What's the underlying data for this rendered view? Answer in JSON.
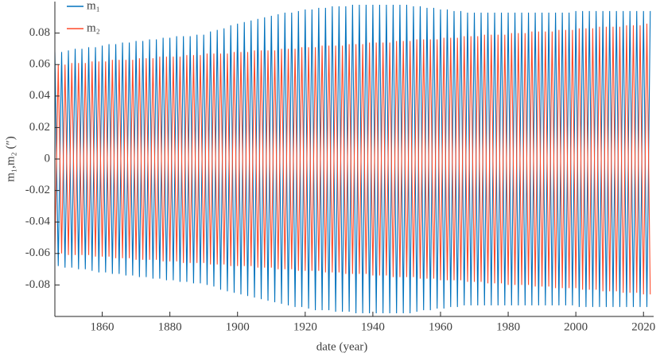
{
  "chart_data": {
    "type": "line",
    "x_label": "date (year)",
    "y_label": "m₁,m₂ (″)",
    "xlim": [
      1846,
      2023
    ],
    "xticks": [
      1860,
      1880,
      1900,
      1920,
      1940,
      1960,
      1980,
      2000,
      2020
    ],
    "ylim": [
      -0.1,
      0.1
    ],
    "yticks": [
      -0.08,
      -0.06,
      -0.04,
      -0.02,
      0,
      0.02,
      0.04,
      0.06,
      0.08
    ],
    "legend": "upper-left",
    "grid": false,
    "x": [
      1846,
      1847,
      1848,
      1849,
      1850,
      1851,
      1852,
      1853,
      1854,
      1855,
      1856,
      1857,
      1858,
      1859,
      1860,
      1861,
      1862,
      1863,
      1864,
      1865,
      1866,
      1867,
      1868,
      1869,
      1870,
      1871,
      1872,
      1873,
      1874,
      1875,
      1876,
      1877,
      1878,
      1879,
      1880,
      1881,
      1882,
      1883,
      1884,
      1885,
      1886,
      1887,
      1888,
      1889,
      1890,
      1891,
      1892,
      1893,
      1894,
      1895,
      1896,
      1897,
      1898,
      1899,
      1900,
      1901,
      1902,
      1903,
      1904,
      1905,
      1906,
      1907,
      1908,
      1909,
      1910,
      1911,
      1912,
      1913,
      1914,
      1915,
      1916,
      1917,
      1918,
      1919,
      1920,
      1921,
      1922,
      1923,
      1924,
      1925,
      1926,
      1927,
      1928,
      1929,
      1930,
      1931,
      1932,
      1933,
      1934,
      1935,
      1936,
      1937,
      1938,
      1939,
      1940,
      1941,
      1942,
      1943,
      1944,
      1945,
      1946,
      1947,
      1948,
      1949,
      1950,
      1951,
      1952,
      1953,
      1954,
      1955,
      1956,
      1957,
      1958,
      1959,
      1960,
      1961,
      1962,
      1963,
      1964,
      1965,
      1966,
      1967,
      1968,
      1969,
      1970,
      1971,
      1972,
      1973,
      1974,
      1975,
      1976,
      1977,
      1978,
      1979,
      1980,
      1981,
      1982,
      1983,
      1984,
      1985,
      1986,
      1987,
      1988,
      1989,
      1990,
      1991,
      1992,
      1993,
      1994,
      1995,
      1996,
      1997,
      1998,
      1999,
      2000,
      2001,
      2002,
      2003,
      2004,
      2005,
      2006,
      2007,
      2008,
      2009,
      2010,
      2011,
      2012,
      2013,
      2014,
      2015,
      2016,
      2017,
      2018,
      2019,
      2020,
      2021,
      2022
    ],
    "series": [
      {
        "name": "m₁",
        "color": "#0072bd",
        "values": [
          0.068,
          -0.068,
          0.068,
          -0.069,
          0.069,
          -0.069,
          0.07,
          -0.07,
          0.07,
          -0.07,
          0.071,
          -0.071,
          0.071,
          -0.072,
          0.072,
          -0.072,
          0.073,
          -0.073,
          0.073,
          -0.073,
          0.074,
          -0.074,
          0.074,
          -0.074,
          0.075,
          -0.075,
          0.075,
          -0.075,
          0.076,
          -0.076,
          0.076,
          -0.076,
          0.077,
          -0.077,
          0.077,
          -0.077,
          0.078,
          -0.078,
          0.078,
          -0.078,
          0.078,
          -0.079,
          0.079,
          -0.079,
          0.079,
          -0.08,
          0.081,
          -0.081,
          0.082,
          -0.083,
          0.083,
          -0.084,
          0.085,
          -0.085,
          0.086,
          -0.086,
          0.087,
          -0.087,
          0.088,
          -0.088,
          0.089,
          -0.089,
          0.09,
          -0.09,
          0.091,
          -0.091,
          0.092,
          -0.092,
          0.093,
          -0.093,
          0.093,
          -0.094,
          0.094,
          -0.094,
          0.095,
          -0.095,
          0.095,
          -0.096,
          0.096,
          -0.096,
          0.096,
          -0.096,
          0.097,
          -0.097,
          0.097,
          -0.097,
          0.097,
          -0.097,
          0.098,
          -0.098,
          0.098,
          -0.098,
          0.098,
          -0.098,
          0.098,
          -0.098,
          0.098,
          -0.098,
          0.098,
          -0.098,
          0.098,
          -0.098,
          0.098,
          -0.098,
          0.098,
          -0.098,
          0.097,
          -0.097,
          0.097,
          -0.096,
          0.096,
          -0.096,
          0.096,
          -0.095,
          0.095,
          -0.095,
          0.095,
          -0.094,
          0.094,
          -0.094,
          0.094,
          -0.093,
          0.093,
          -0.093,
          0.093,
          -0.093,
          0.093,
          -0.093,
          0.093,
          -0.093,
          0.093,
          -0.093,
          0.093,
          -0.093,
          0.093,
          -0.093,
          0.093,
          -0.093,
          0.093,
          -0.093,
          0.093,
          -0.093,
          0.093,
          -0.093,
          0.093,
          -0.093,
          0.093,
          -0.093,
          0.093,
          -0.093,
          0.093,
          -0.093,
          0.093,
          -0.093,
          0.094,
          -0.094,
          0.094,
          -0.094,
          0.094,
          -0.094,
          0.094,
          -0.094,
          0.094,
          -0.094,
          0.094,
          -0.094,
          0.094,
          -0.094,
          0.094,
          -0.094,
          0.094,
          -0.094,
          0.094,
          -0.094,
          0.094,
          -0.094,
          0.094
        ]
      },
      {
        "name": "m₂",
        "color": "#ff4a2a",
        "values": [
          -0.06,
          0.06,
          -0.06,
          0.06,
          -0.061,
          0.061,
          -0.061,
          0.061,
          -0.061,
          0.061,
          -0.061,
          0.062,
          -0.062,
          0.062,
          -0.062,
          0.062,
          -0.062,
          0.063,
          -0.063,
          0.063,
          -0.063,
          0.063,
          -0.063,
          0.063,
          -0.064,
          0.064,
          -0.064,
          0.064,
          -0.064,
          0.064,
          -0.064,
          0.065,
          -0.065,
          0.065,
          -0.065,
          0.065,
          -0.065,
          0.065,
          -0.066,
          0.066,
          -0.066,
          0.066,
          -0.066,
          0.066,
          -0.066,
          0.067,
          -0.067,
          0.067,
          -0.067,
          0.067,
          -0.067,
          0.067,
          -0.068,
          0.068,
          -0.068,
          0.068,
          -0.068,
          0.068,
          -0.068,
          0.069,
          -0.069,
          0.069,
          -0.069,
          0.069,
          -0.069,
          0.069,
          -0.07,
          0.07,
          -0.07,
          0.07,
          -0.07,
          0.07,
          -0.071,
          0.071,
          -0.071,
          0.071,
          -0.071,
          0.071,
          -0.071,
          0.072,
          -0.072,
          0.072,
          -0.072,
          0.072,
          -0.072,
          0.072,
          -0.073,
          0.073,
          -0.073,
          0.073,
          -0.073,
          0.073,
          -0.073,
          0.074,
          -0.074,
          0.074,
          -0.074,
          0.074,
          -0.074,
          0.074,
          -0.075,
          0.075,
          -0.075,
          0.075,
          -0.075,
          0.075,
          -0.075,
          0.076,
          -0.076,
          0.076,
          -0.076,
          0.076,
          -0.076,
          0.076,
          -0.077,
          0.077,
          -0.077,
          0.077,
          -0.077,
          0.077,
          -0.077,
          0.078,
          -0.078,
          0.078,
          -0.078,
          0.078,
          -0.078,
          0.079,
          -0.079,
          0.079,
          -0.079,
          0.079,
          -0.079,
          0.079,
          -0.08,
          0.08,
          -0.08,
          0.08,
          -0.08,
          0.08,
          -0.08,
          0.081,
          -0.081,
          0.081,
          -0.081,
          0.081,
          -0.081,
          0.081,
          -0.082,
          0.082,
          -0.082,
          0.082,
          -0.082,
          0.082,
          -0.082,
          0.083,
          -0.083,
          0.083,
          -0.083,
          0.083,
          -0.083,
          0.084,
          -0.084,
          0.084,
          -0.084,
          0.084,
          -0.084,
          0.084,
          -0.085,
          0.085,
          -0.085,
          0.085,
          -0.085,
          0.085,
          -0.086,
          0.086,
          -0.086
        ]
      }
    ]
  }
}
